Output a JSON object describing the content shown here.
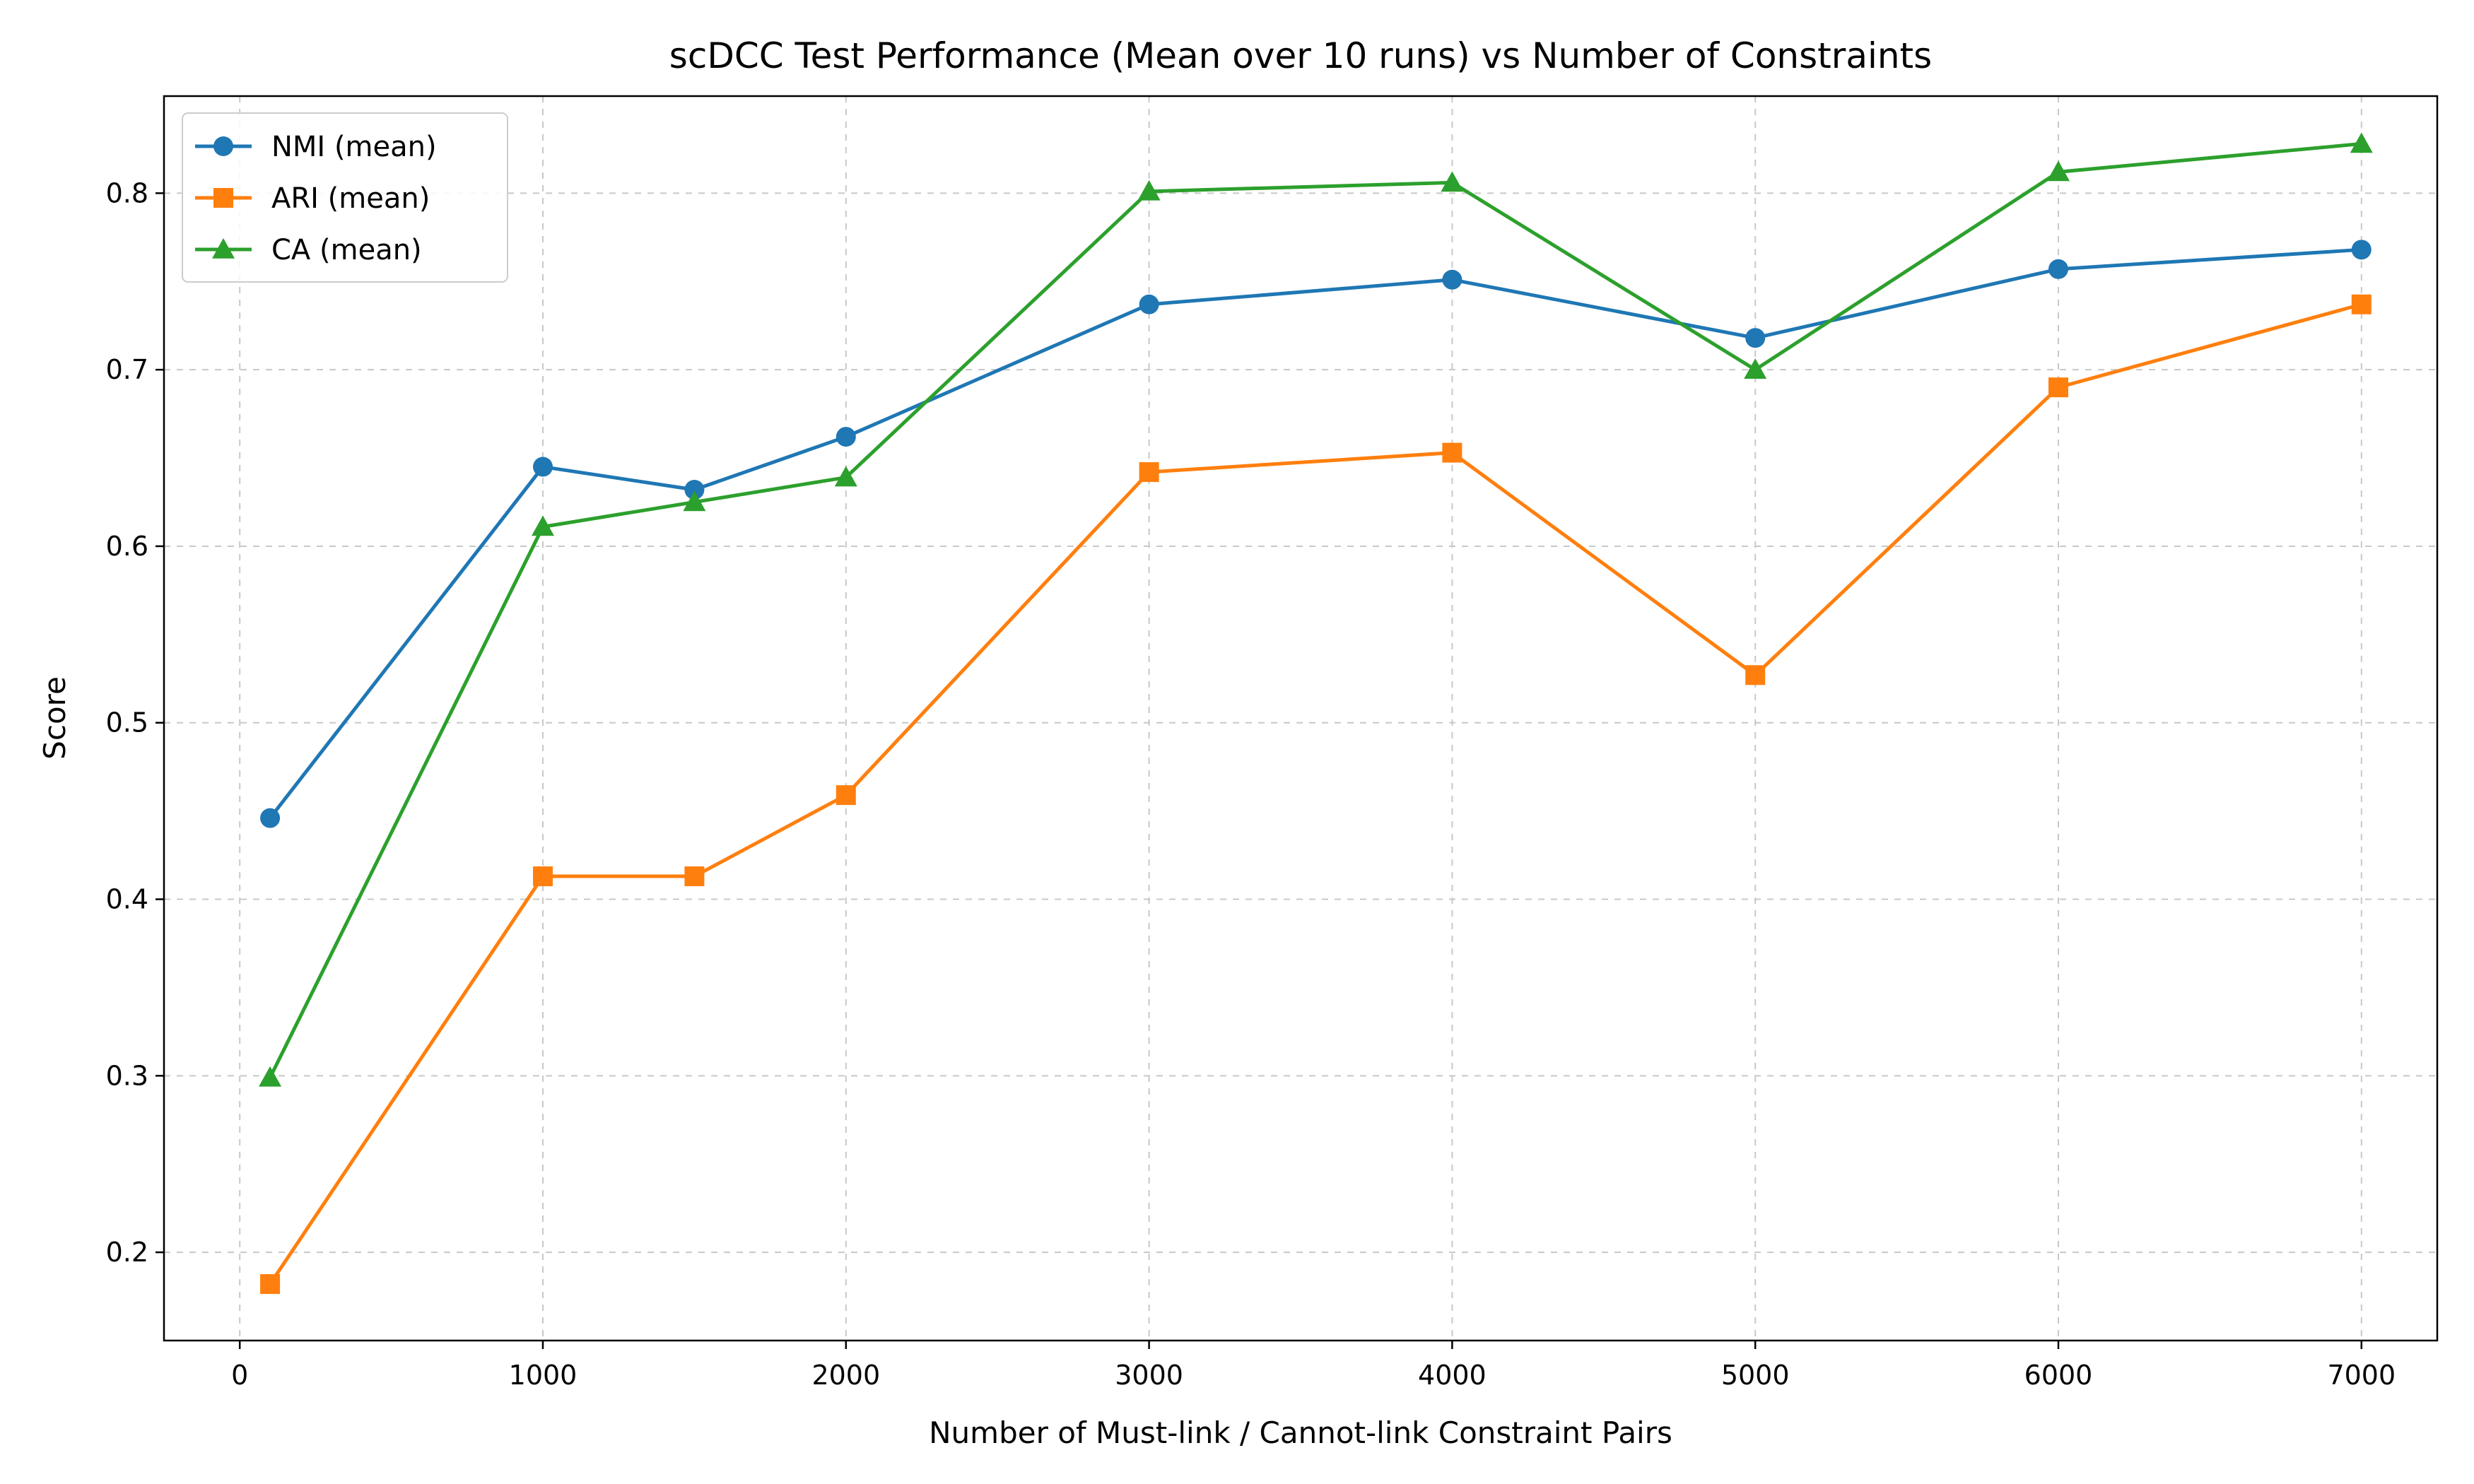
{
  "chart_data": {
    "type": "line",
    "title": "scDCC Test Performance (Mean over 10 runs) vs Number of Constraints",
    "xlabel": "Number of Must-link / Cannot-link Constraint Pairs",
    "ylabel": "Score",
    "x": [
      100,
      1000,
      1500,
      2000,
      3000,
      4000,
      5000,
      6000,
      7000
    ],
    "xticks": [
      0,
      1000,
      2000,
      3000,
      4000,
      5000,
      6000,
      7000
    ],
    "xtick_labels": [
      "0",
      "1000",
      "2000",
      "3000",
      "4000",
      "5000",
      "6000",
      "7000"
    ],
    "yticks": [
      0.2,
      0.3,
      0.4,
      0.5,
      0.6,
      0.7,
      0.8
    ],
    "ytick_labels": [
      "0.2",
      "0.3",
      "0.4",
      "0.5",
      "0.6",
      "0.7",
      "0.8"
    ],
    "xlim": [
      -250,
      7250
    ],
    "ylim": [
      0.15,
      0.855
    ],
    "grid": true,
    "legend_position": "top-left",
    "series": [
      {
        "name": "NMI (mean)",
        "color": "#1f77b4",
        "marker": "circle",
        "values": [
          0.446,
          0.645,
          0.632,
          0.662,
          0.737,
          0.751,
          0.718,
          0.757,
          0.768
        ]
      },
      {
        "name": "ARI (mean)",
        "color": "#ff7f0e",
        "marker": "square",
        "values": [
          0.182,
          0.413,
          0.413,
          0.459,
          0.642,
          0.653,
          0.527,
          0.69,
          0.737
        ]
      },
      {
        "name": "CA (mean)",
        "color": "#2ca02c",
        "marker": "triangle",
        "values": [
          0.299,
          0.611,
          0.625,
          0.639,
          0.801,
          0.806,
          0.7,
          0.812,
          0.828
        ]
      }
    ]
  }
}
